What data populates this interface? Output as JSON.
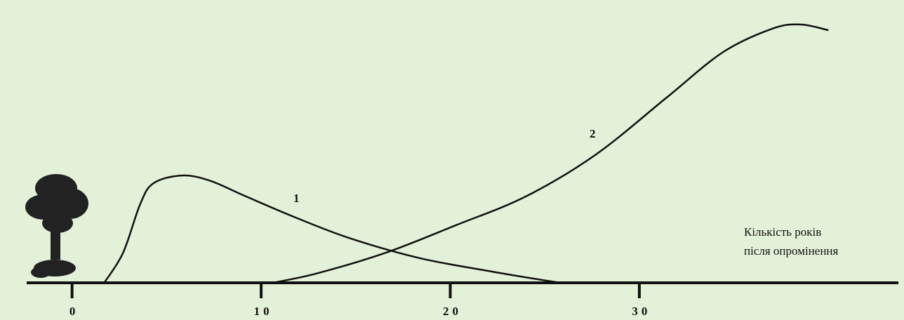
{
  "chart_data": {
    "type": "line",
    "x_label_lines": [
      "Кількість років",
      "після опромінення"
    ],
    "xlim": [
      -2.4,
      43.7
    ],
    "ylim": [
      0,
      100
    ],
    "xticks": [
      0,
      10,
      20,
      30
    ],
    "series": [
      {
        "name": "1",
        "color": "#111111",
        "x": [
          1.7,
          2.7,
          3.6,
          4.3,
          5.8,
          7.3,
          9.2,
          11.8,
          14.7,
          18.4,
          22.2,
          25.1,
          25.9
        ],
        "values": [
          0,
          11.5,
          30,
          38,
          41,
          39,
          33,
          25,
          17,
          9.4,
          4.3,
          0.8,
          0
        ]
      },
      {
        "name": "2",
        "color": "#111111",
        "x": [
          10.6,
          12.9,
          16.6,
          20.3,
          24,
          27.7,
          31.4,
          34.4,
          37,
          38.5,
          40
        ],
        "values": [
          0,
          3.5,
          11.5,
          22,
          33,
          49,
          70.5,
          88,
          97,
          98.7,
          96.5
        ]
      }
    ]
  }
}
